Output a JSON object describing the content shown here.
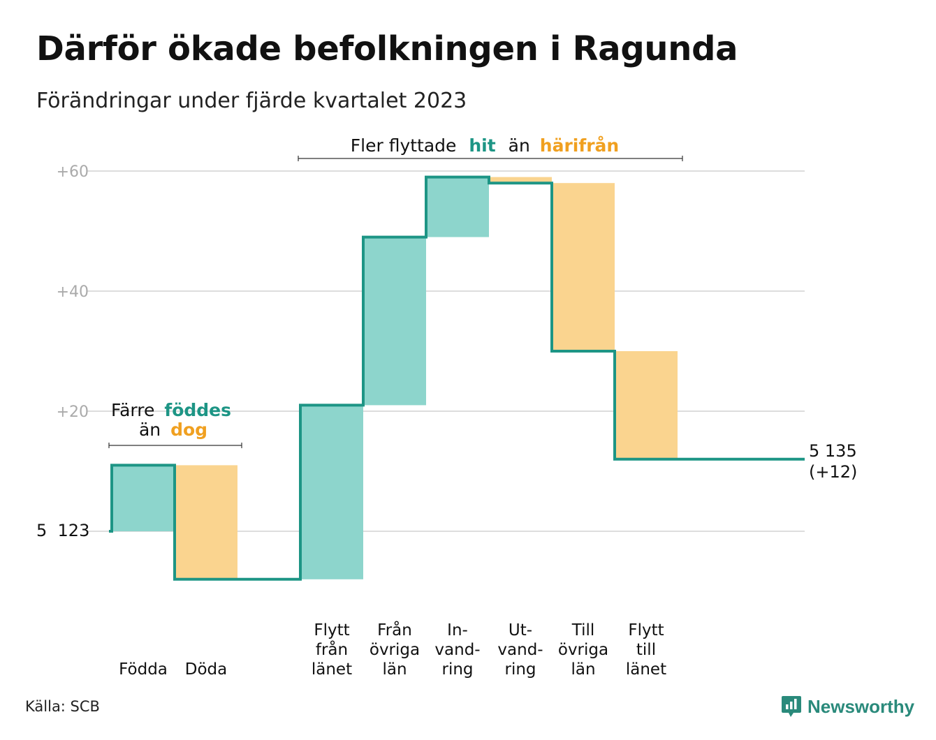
{
  "title": "Därför ökade befolkningen i Ragunda",
  "subtitle": "Förändringar under fjärde kvartalet 2023",
  "source": "Källa: SCB",
  "brand": "Newsworthy",
  "colors": {
    "increase": "#8dd5cc",
    "decrease": "#fad48f",
    "line": "#1d9585",
    "accent_orange": "#f0a020",
    "grid": "#dddddd",
    "tick": "#aaaaaa"
  },
  "annotations": {
    "births_deaths": {
      "line1": "Färre",
      "word1": "föddes",
      "line2": "än",
      "word2": "dog"
    },
    "migration": {
      "text1": "Fler flyttade",
      "word1": "hit",
      "text2": "än",
      "word2": "härifrån"
    }
  },
  "chart_data": {
    "type": "waterfall",
    "start_value": 5123,
    "start_label": "5  123",
    "end_value": 5135,
    "end_label_line1": "5 135",
    "end_label_line2": "(+12)",
    "y_ticks": [
      {
        "value": 20,
        "label": "+20"
      },
      {
        "value": 40,
        "label": "+40"
      },
      {
        "value": 60,
        "label": "+60"
      }
    ],
    "ylim": [
      -10,
      60
    ],
    "grid": true,
    "steps": [
      {
        "label": [
          "",
          "",
          "Födda"
        ],
        "change": 11,
        "kind": "increase"
      },
      {
        "label": [
          "",
          "",
          "Döda"
        ],
        "change": -19,
        "kind": "decrease"
      },
      {
        "label": [],
        "change": 0,
        "kind": "gap"
      },
      {
        "label": [
          "Flytt",
          "från",
          "länet"
        ],
        "change": 29,
        "kind": "increase"
      },
      {
        "label": [
          "Från",
          "övriga",
          "län"
        ],
        "change": 28,
        "kind": "increase"
      },
      {
        "label": [
          "In-",
          "vand-",
          "ring"
        ],
        "change": 10,
        "kind": "increase"
      },
      {
        "label": [
          "Ut-",
          "vand-",
          "ring"
        ],
        "change": -1,
        "kind": "decrease"
      },
      {
        "label": [
          "Till",
          "övriga",
          "län"
        ],
        "change": -28,
        "kind": "decrease"
      },
      {
        "label": [
          "Flytt",
          "till",
          "länet"
        ],
        "change": -18,
        "kind": "decrease"
      }
    ]
  }
}
